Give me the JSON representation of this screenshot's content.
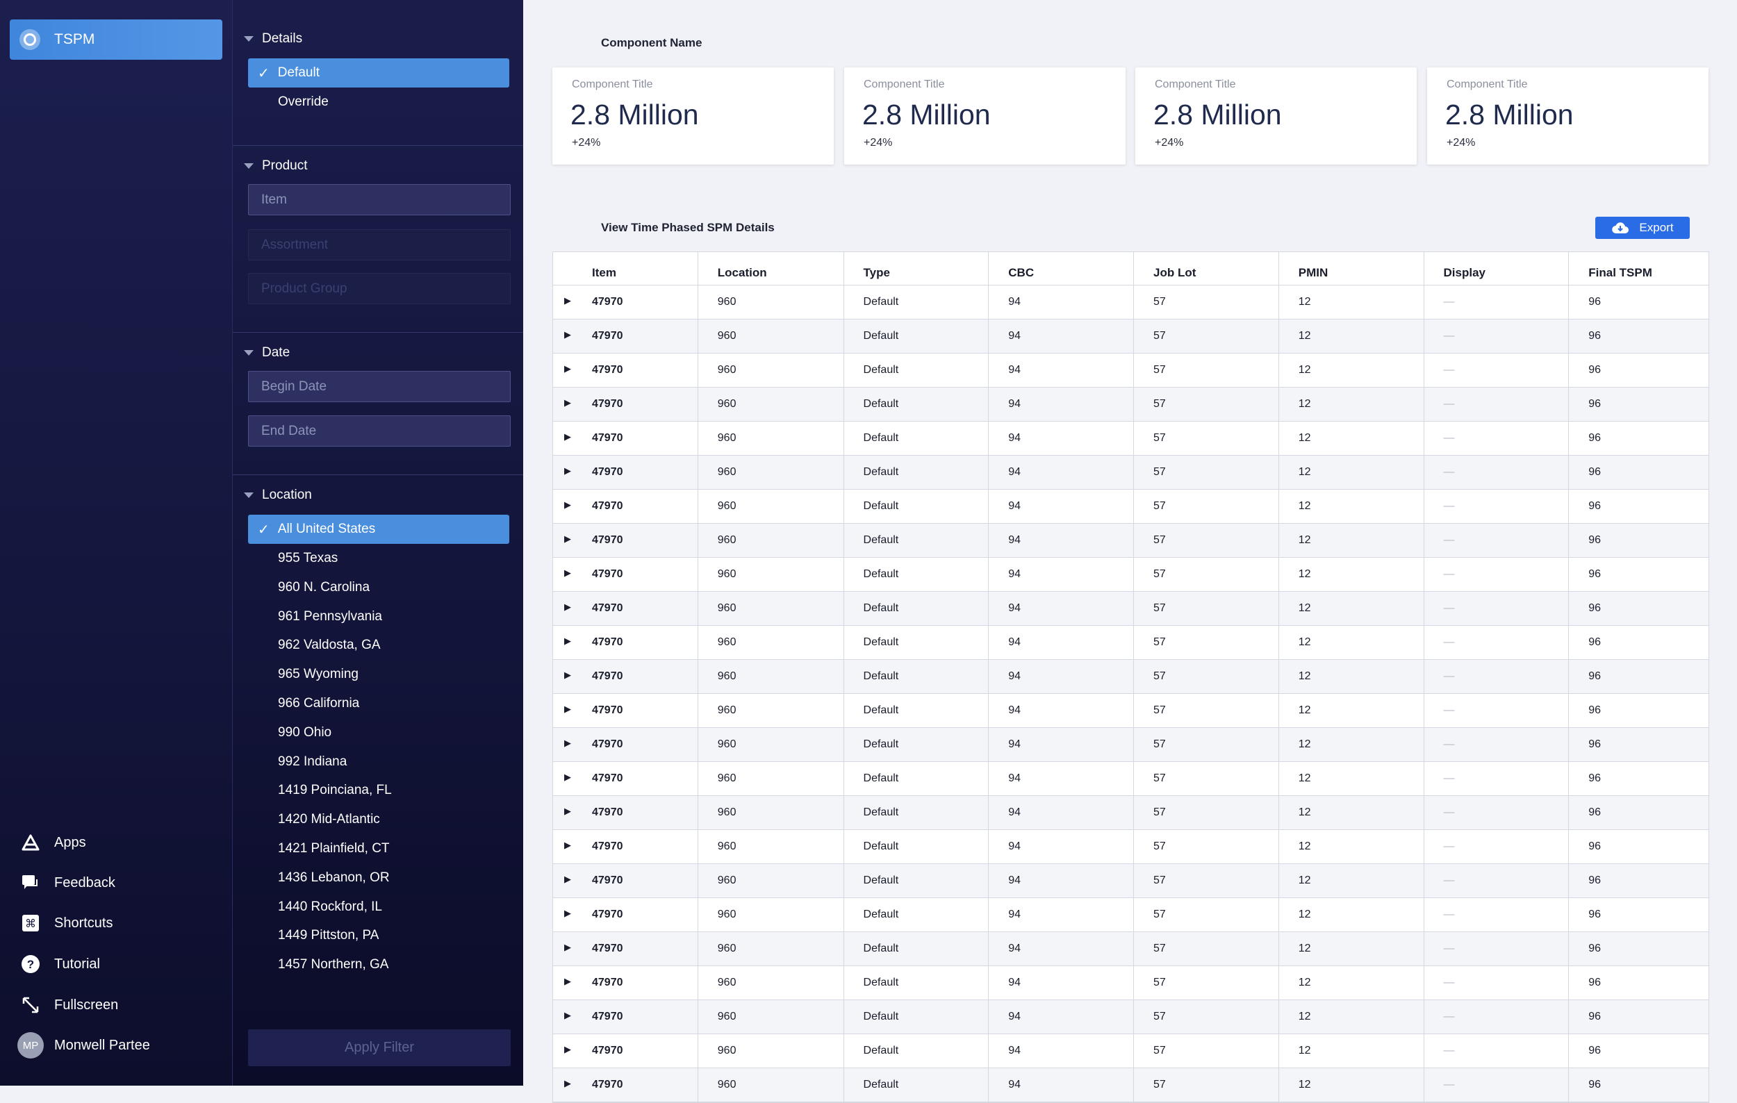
{
  "app": {
    "name": "TSPM"
  },
  "nav": {
    "items": [
      {
        "label": "Apps",
        "icon": "apps-icon"
      },
      {
        "label": "Feedback",
        "icon": "feedback-icon"
      },
      {
        "label": "Shortcuts",
        "icon": "shortcuts-icon"
      },
      {
        "label": "Tutorial",
        "icon": "tutorial-icon"
      },
      {
        "label": "Fullscreen",
        "icon": "fullscreen-icon"
      }
    ],
    "user": {
      "name": "Monwell Partee",
      "initials": "MP"
    }
  },
  "filters": {
    "details": {
      "title": "Details",
      "options": [
        "Default",
        "Override"
      ],
      "selected": "Default"
    },
    "product": {
      "title": "Product",
      "item_placeholder": "Item",
      "assortment_placeholder": "Assortment",
      "group_placeholder": "Product Group"
    },
    "date": {
      "title": "Date",
      "begin_placeholder": "Begin Date",
      "end_placeholder": "End Date"
    },
    "location": {
      "title": "Location",
      "selected": "All United States",
      "options": [
        "955 Texas",
        "960 N. Carolina",
        "961 Pennsylvania",
        "962 Valdosta, GA",
        "965 Wyoming",
        "966 California",
        "990 Ohio",
        "992 Indiana",
        "1419 Poinciana, FL",
        "1420 Mid-Atlantic",
        "1421 Plainfield, CT",
        "1436 Lebanon, OR",
        "1440 Rockford, IL",
        "1449 Pittston, PA",
        "1457 Northern, GA"
      ]
    },
    "apply_label": "Apply Filter"
  },
  "main": {
    "component_name": "Component Name",
    "cards": [
      {
        "title": "Component Title",
        "value": "2.8 Million",
        "delta": "+24%"
      },
      {
        "title": "Component Title",
        "value": "2.8 Million",
        "delta": "+24%"
      },
      {
        "title": "Component Title",
        "value": "2.8 Million",
        "delta": "+24%"
      },
      {
        "title": "Component Title",
        "value": "2.8 Million",
        "delta": "+24%"
      }
    ],
    "table_title": "View Time Phased SPM Details",
    "export_label": "Export",
    "columns": [
      "Item",
      "Location",
      "Type",
      "CBC",
      "Job Lot",
      "PMIN",
      "Display",
      "Final TSPM"
    ],
    "row_template": {
      "item": "47970",
      "location": "960",
      "type": "Default",
      "cbc": "94",
      "job_lot": "57",
      "pmin": "12",
      "display": "—",
      "final": "96"
    },
    "row_count": 24
  }
}
